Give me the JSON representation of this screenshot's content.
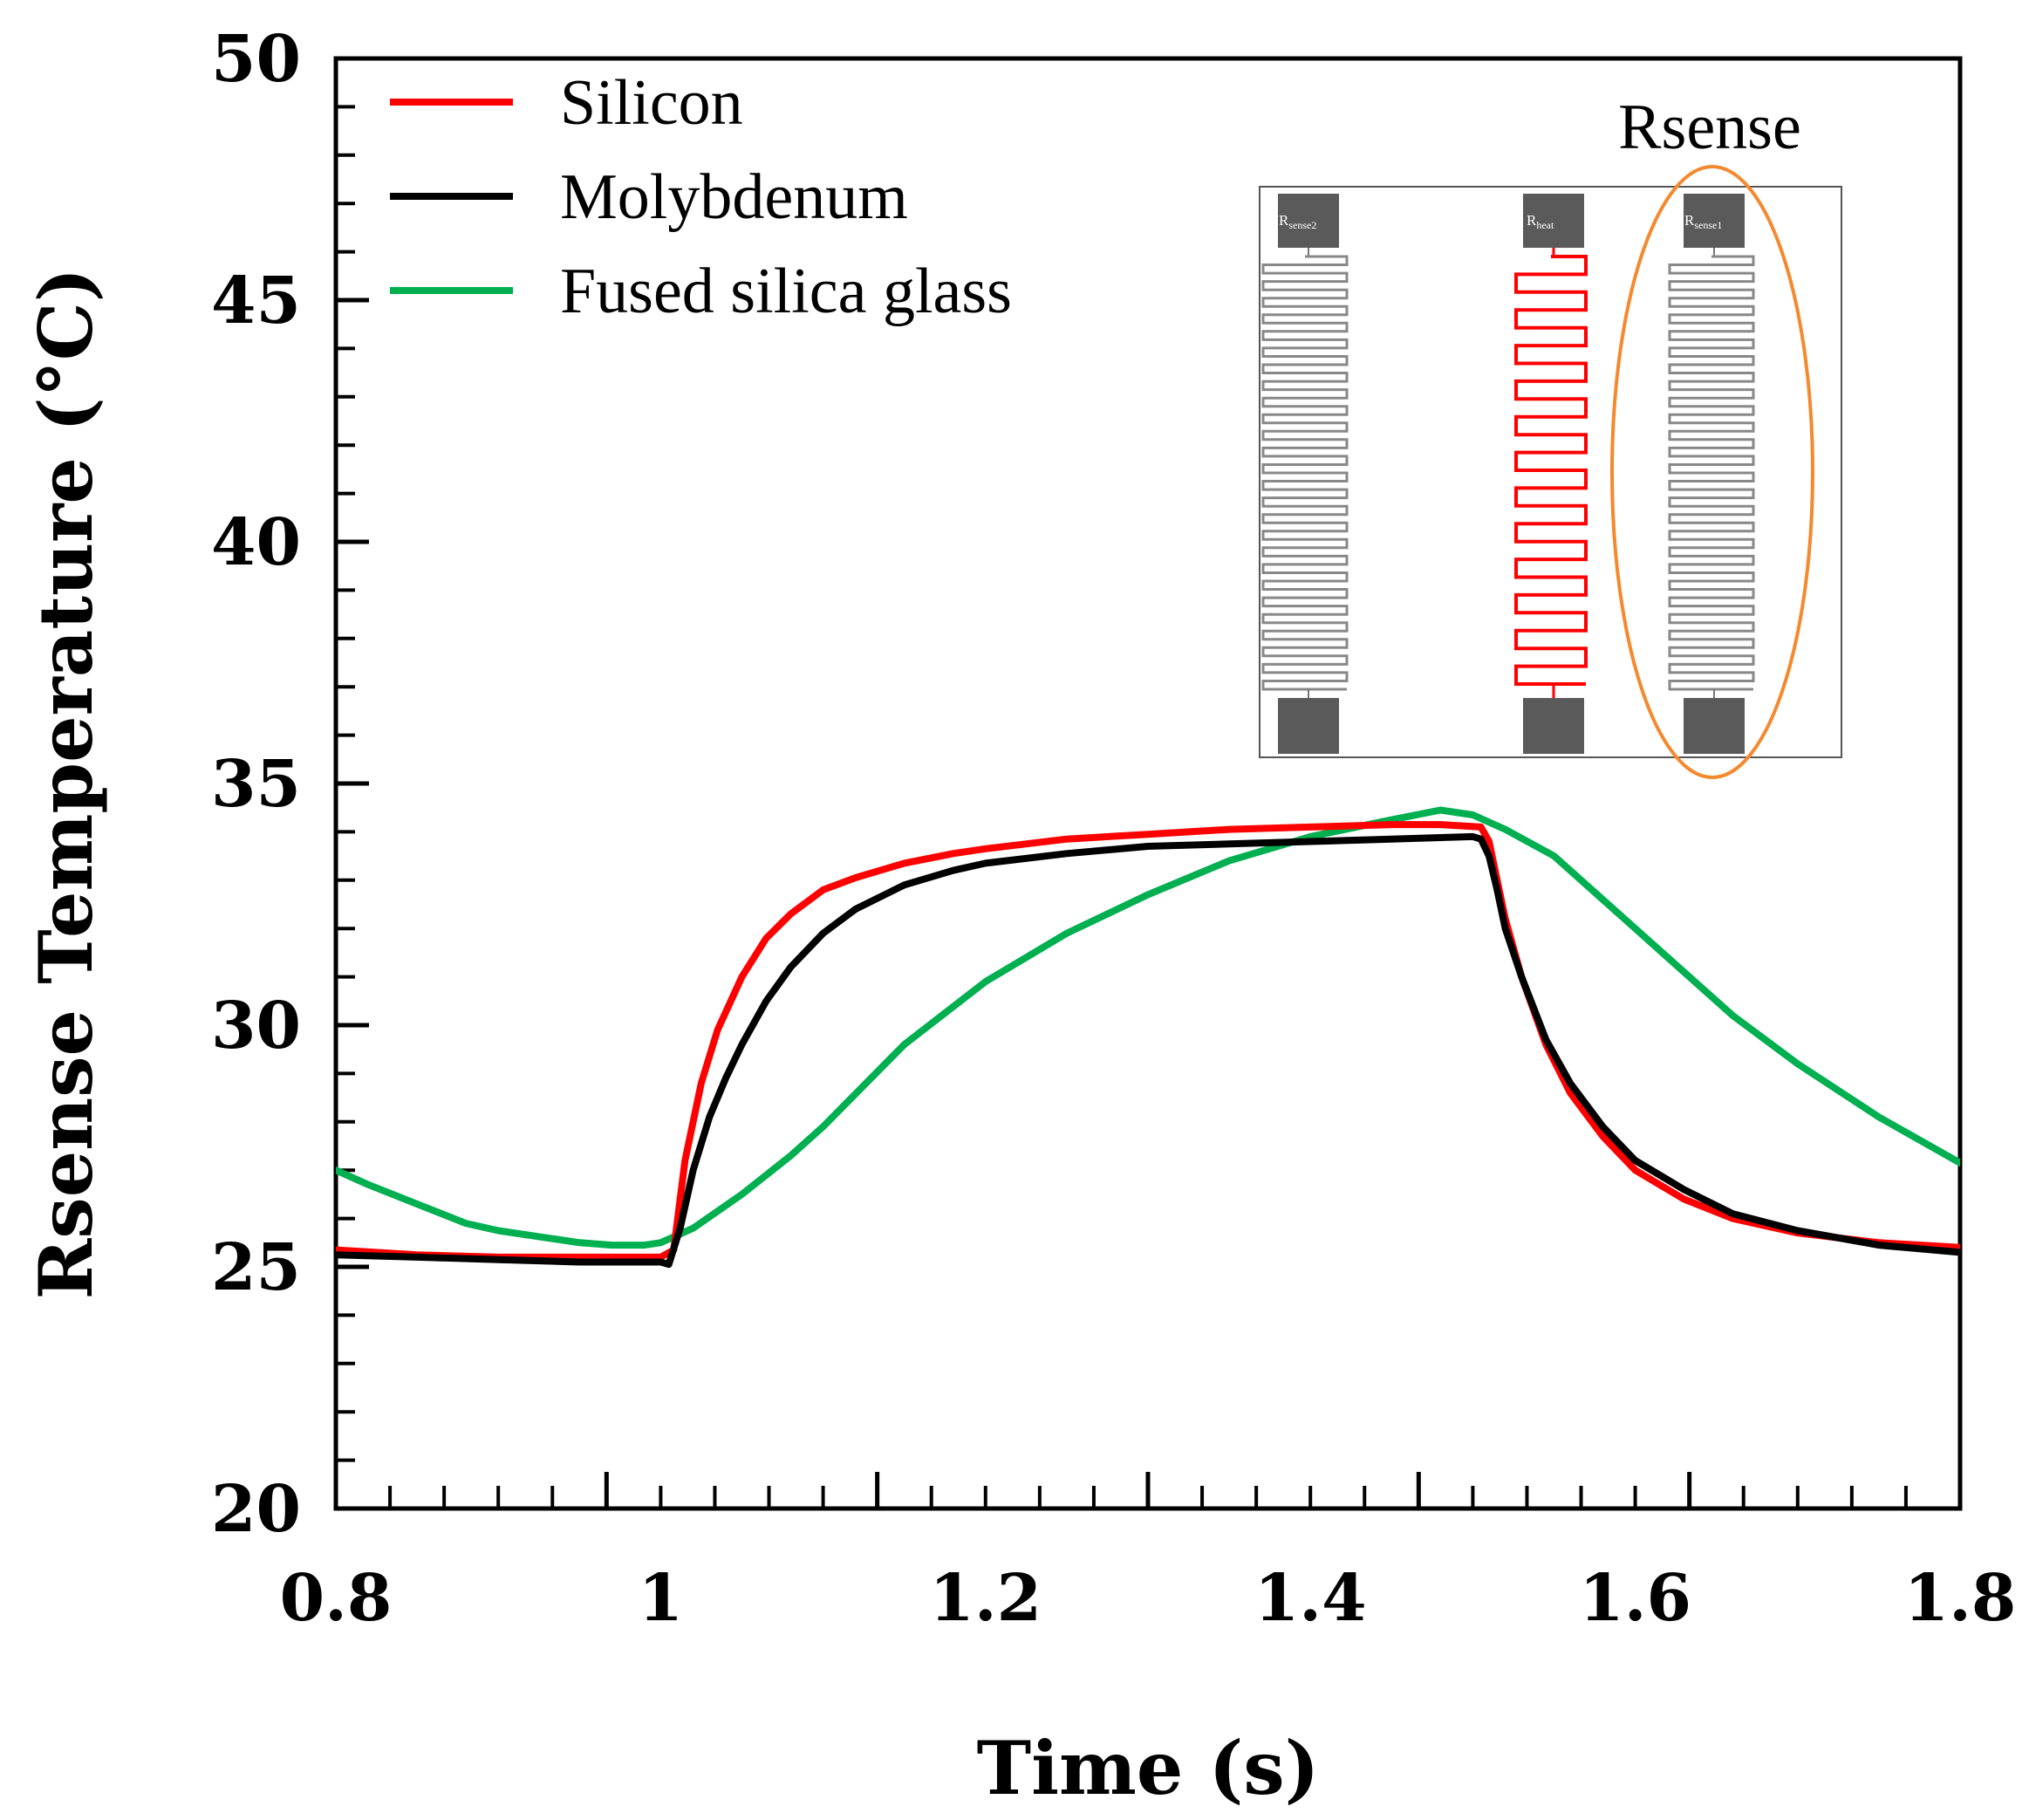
{
  "chart_data": {
    "type": "line",
    "title": "",
    "xlabel": "Time (s)",
    "ylabel": "Rsense Temperature (°C)",
    "xlim": [
      0.8,
      1.8
    ],
    "ylim": [
      20,
      50
    ],
    "x_ticks": [
      0.8,
      1,
      1.2,
      1.4,
      1.6,
      1.8
    ],
    "x_tick_labels": [
      "0.8",
      "1",
      "1.2",
      "1.4",
      "1.6",
      "1.8"
    ],
    "y_ticks": [
      20,
      25,
      30,
      35,
      40,
      45,
      50
    ],
    "y_tick_labels": [
      "20",
      "25",
      "30",
      "35",
      "40",
      "45",
      "50"
    ],
    "grid": false,
    "legend_position": "top-left",
    "series": [
      {
        "name": "Silicon",
        "color": "#ff0000",
        "x": [
          0.8,
          0.85,
          0.9,
          0.95,
          1.0,
          1.008,
          1.015,
          1.025,
          1.035,
          1.05,
          1.065,
          1.08,
          1.1,
          1.12,
          1.15,
          1.18,
          1.2,
          1.25,
          1.3,
          1.35,
          1.4,
          1.45,
          1.48,
          1.505,
          1.51,
          1.515,
          1.52,
          1.53,
          1.545,
          1.56,
          1.58,
          1.6,
          1.63,
          1.66,
          1.7,
          1.75,
          1.8
        ],
        "y": [
          25.35,
          25.25,
          25.2,
          25.2,
          25.2,
          25.35,
          27.2,
          28.8,
          29.9,
          31.0,
          31.8,
          32.3,
          32.8,
          33.05,
          33.35,
          33.55,
          33.65,
          33.85,
          33.95,
          34.05,
          34.1,
          34.15,
          34.15,
          34.1,
          33.8,
          33.0,
          32.2,
          31.0,
          29.6,
          28.6,
          27.7,
          27.0,
          26.4,
          26.0,
          25.7,
          25.5,
          25.4
        ]
      },
      {
        "name": "Molybdenum",
        "color": "#000000",
        "x": [
          0.8,
          0.85,
          0.9,
          0.95,
          1.0,
          1.005,
          1.012,
          1.02,
          1.03,
          1.04,
          1.05,
          1.065,
          1.08,
          1.1,
          1.12,
          1.15,
          1.18,
          1.2,
          1.25,
          1.3,
          1.35,
          1.4,
          1.45,
          1.5,
          1.505,
          1.51,
          1.515,
          1.52,
          1.53,
          1.545,
          1.56,
          1.58,
          1.6,
          1.63,
          1.66,
          1.7,
          1.75,
          1.8
        ],
        "y": [
          25.25,
          25.2,
          25.15,
          25.1,
          25.1,
          25.05,
          25.8,
          27.0,
          28.1,
          28.9,
          29.6,
          30.5,
          31.2,
          31.9,
          32.4,
          32.9,
          33.2,
          33.35,
          33.55,
          33.7,
          33.75,
          33.8,
          33.85,
          33.9,
          33.85,
          33.5,
          32.8,
          32.0,
          31.0,
          29.7,
          28.8,
          27.9,
          27.2,
          26.6,
          26.1,
          25.75,
          25.45,
          25.3
        ]
      },
      {
        "name": "Fused silica glass",
        "color": "#00b050",
        "x": [
          0.8,
          0.82,
          0.85,
          0.88,
          0.9,
          0.93,
          0.95,
          0.97,
          0.99,
          1.0,
          1.02,
          1.05,
          1.08,
          1.1,
          1.15,
          1.2,
          1.25,
          1.3,
          1.35,
          1.4,
          1.45,
          1.48,
          1.5,
          1.52,
          1.55,
          1.58,
          1.6,
          1.63,
          1.66,
          1.7,
          1.75,
          1.8
        ],
        "y": [
          27.0,
          26.7,
          26.3,
          25.9,
          25.75,
          25.6,
          25.5,
          25.45,
          25.45,
          25.5,
          25.8,
          26.5,
          27.3,
          27.9,
          29.6,
          30.9,
          31.9,
          32.7,
          33.4,
          33.9,
          34.25,
          34.45,
          34.35,
          34.05,
          33.5,
          32.6,
          32.0,
          31.1,
          30.2,
          29.2,
          28.1,
          27.15
        ]
      }
    ]
  },
  "inset": {
    "title": "Rsense",
    "left_label": "R",
    "left_sub": "sense2",
    "center_label": "R",
    "center_sub": "heat",
    "right_label": "R",
    "right_sub": "sense1"
  }
}
